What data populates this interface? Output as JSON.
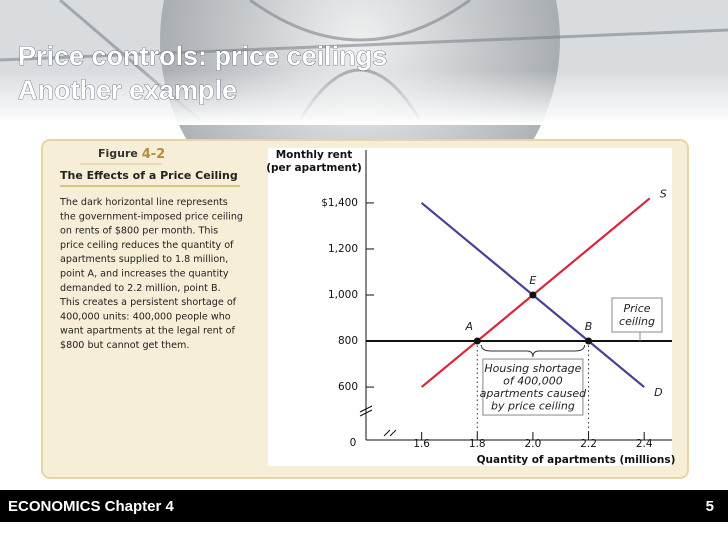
{
  "slide": {
    "title": [
      "Price controls: price ceilings",
      "Another example"
    ],
    "footer": "ECONOMICS Chapter 4",
    "page": "5"
  },
  "figure": {
    "label": "Figure",
    "number": "4-2",
    "heading": "The Effects of a Price Ceiling",
    "caption": [
      "The dark horizontal line represents",
      "the government-imposed price ceiling",
      "on rents of $800 per month. This",
      "price ceiling reduces the quantity of",
      "apartments supplied to 1.8 million,",
      "point A, and increases the quantity",
      "demanded to 2.2 million, point B.",
      "This creates a persistent shortage of",
      "400,000 units: 400,000 people who",
      "want apartments at the legal rent of",
      "$800 but cannot get them."
    ]
  },
  "chart_data": {
    "type": "line",
    "ylabel": [
      "Monthly rent",
      "(per apartment)"
    ],
    "xlabel": "Quantity of apartments (millions)",
    "origin_label": "0",
    "xlim": [
      1.4,
      2.5
    ],
    "ylim": [
      370,
      1630
    ],
    "xticks": [
      1.6,
      1.8,
      {
        "value": 2,
        "label": "2.0"
      },
      2.2,
      2.4
    ],
    "yticks": [
      {
        "value": 1400,
        "label": "$1,400"
      },
      {
        "value": 1200,
        "label": "1,200"
      },
      {
        "value": 1000,
        "label": "1,000"
      },
      800,
      600
    ],
    "series": [
      {
        "name": "S",
        "color": "#d9263b",
        "x": [
          1.6,
          2.42
        ],
        "values": [
          600,
          1420
        ]
      },
      {
        "name": "D",
        "color": "#4a3f99",
        "x": [
          1.6,
          2.4
        ],
        "values": [
          1400,
          600
        ]
      }
    ],
    "ceiling": {
      "value": 800,
      "label": [
        "Price",
        "ceiling"
      ],
      "color": "#111"
    },
    "points": [
      {
        "label": "A",
        "x": 1.8,
        "y": 800
      },
      {
        "label": "E",
        "x": 2,
        "y": 1000
      },
      {
        "label": "B",
        "x": 2.2,
        "y": 800
      }
    ],
    "shortage_label": [
      "Housing shortage",
      "of 400,000",
      "apartments caused",
      "by price ceiling"
    ]
  }
}
